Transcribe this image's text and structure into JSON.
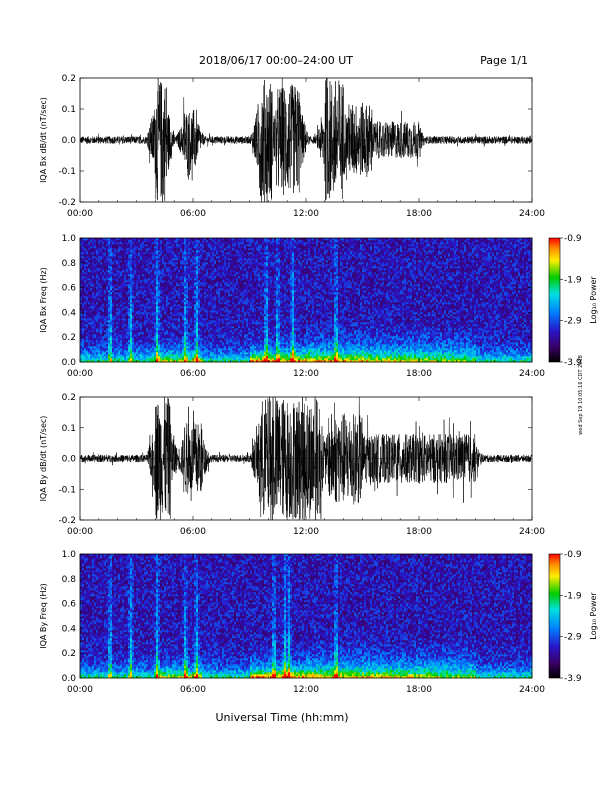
{
  "header": {
    "title": "2018/06/17   00:00–24:00 UT",
    "page": "Page 1/1"
  },
  "footer": {
    "xlabel": "Universal Time (hh:mm)",
    "side_stamp": "wed Sep 19 10:05:16 CDT 2018"
  },
  "time_ticks": [
    "00:00",
    "06:00",
    "12:00",
    "18:00",
    "24:00"
  ],
  "colorbar": {
    "label": "Log₁₀ Power",
    "ticks": [
      "-0.9",
      "-1.9",
      "-2.9",
      "-3.9"
    ],
    "range": [
      -3.9,
      -0.9
    ]
  },
  "chart_data": [
    {
      "type": "line",
      "ylabel": "IQA Bx dB/dt (nT/sec)",
      "xlim": [
        0,
        24
      ],
      "ylim": [
        -0.2,
        0.2
      ],
      "yticks": [
        "0.2",
        "0.1",
        "0.0",
        "-0.1",
        "-0.2"
      ],
      "activity_hours": [
        {
          "start": 4.0,
          "end": 4.6,
          "amplitude": 0.2
        },
        {
          "start": 5.5,
          "end": 6.2,
          "amplitude": 0.1
        },
        {
          "start": 9.5,
          "end": 10.2,
          "amplitude": 0.2
        },
        {
          "start": 10.5,
          "end": 11.7,
          "amplitude": 0.18
        },
        {
          "start": 13.0,
          "end": 14.0,
          "amplitude": 0.2
        },
        {
          "start": 14.2,
          "end": 15.5,
          "amplitude": 0.12
        },
        {
          "start": 15.5,
          "end": 18.0,
          "amplitude": 0.06
        }
      ]
    },
    {
      "type": "heatmap",
      "ylabel": "IQA Bx Freq (Hz)",
      "xlim": [
        0,
        24
      ],
      "ylim": [
        0.0,
        1.0
      ],
      "yticks": [
        "1.0",
        "0.8",
        "0.6",
        "0.4",
        "0.2",
        "0.0"
      ],
      "color_scale": "log10 power, -3.9 to -0.9",
      "events_hours": [
        1.6,
        2.7,
        4.1,
        5.6,
        6.2,
        9.9,
        10.5,
        11.3,
        13.6
      ]
    },
    {
      "type": "line",
      "ylabel": "IQA By dB/dt (nT/sec)",
      "xlim": [
        0,
        24
      ],
      "ylim": [
        -0.2,
        0.2
      ],
      "yticks": [
        "0.2",
        "0.1",
        "0.0",
        "-0.1",
        "-0.2"
      ],
      "activity_hours": [
        {
          "start": 4.0,
          "end": 4.8,
          "amplitude": 0.2
        },
        {
          "start": 5.5,
          "end": 6.5,
          "amplitude": 0.12
        },
        {
          "start": 9.5,
          "end": 12.8,
          "amplitude": 0.2
        },
        {
          "start": 13.2,
          "end": 15.0,
          "amplitude": 0.15
        },
        {
          "start": 15.0,
          "end": 21.0,
          "amplitude": 0.08
        }
      ]
    },
    {
      "type": "heatmap",
      "ylabel": "IQA By Freq (Hz)",
      "xlim": [
        0,
        24
      ],
      "ylim": [
        0.0,
        1.0
      ],
      "yticks": [
        "1.0",
        "0.8",
        "0.6",
        "0.4",
        "0.2",
        "0.0"
      ],
      "color_scale": "log10 power, -3.9 to -0.9",
      "events_hours": [
        1.6,
        2.7,
        4.1,
        5.6,
        6.2,
        10.3,
        10.9,
        11.1,
        13.6
      ]
    }
  ]
}
